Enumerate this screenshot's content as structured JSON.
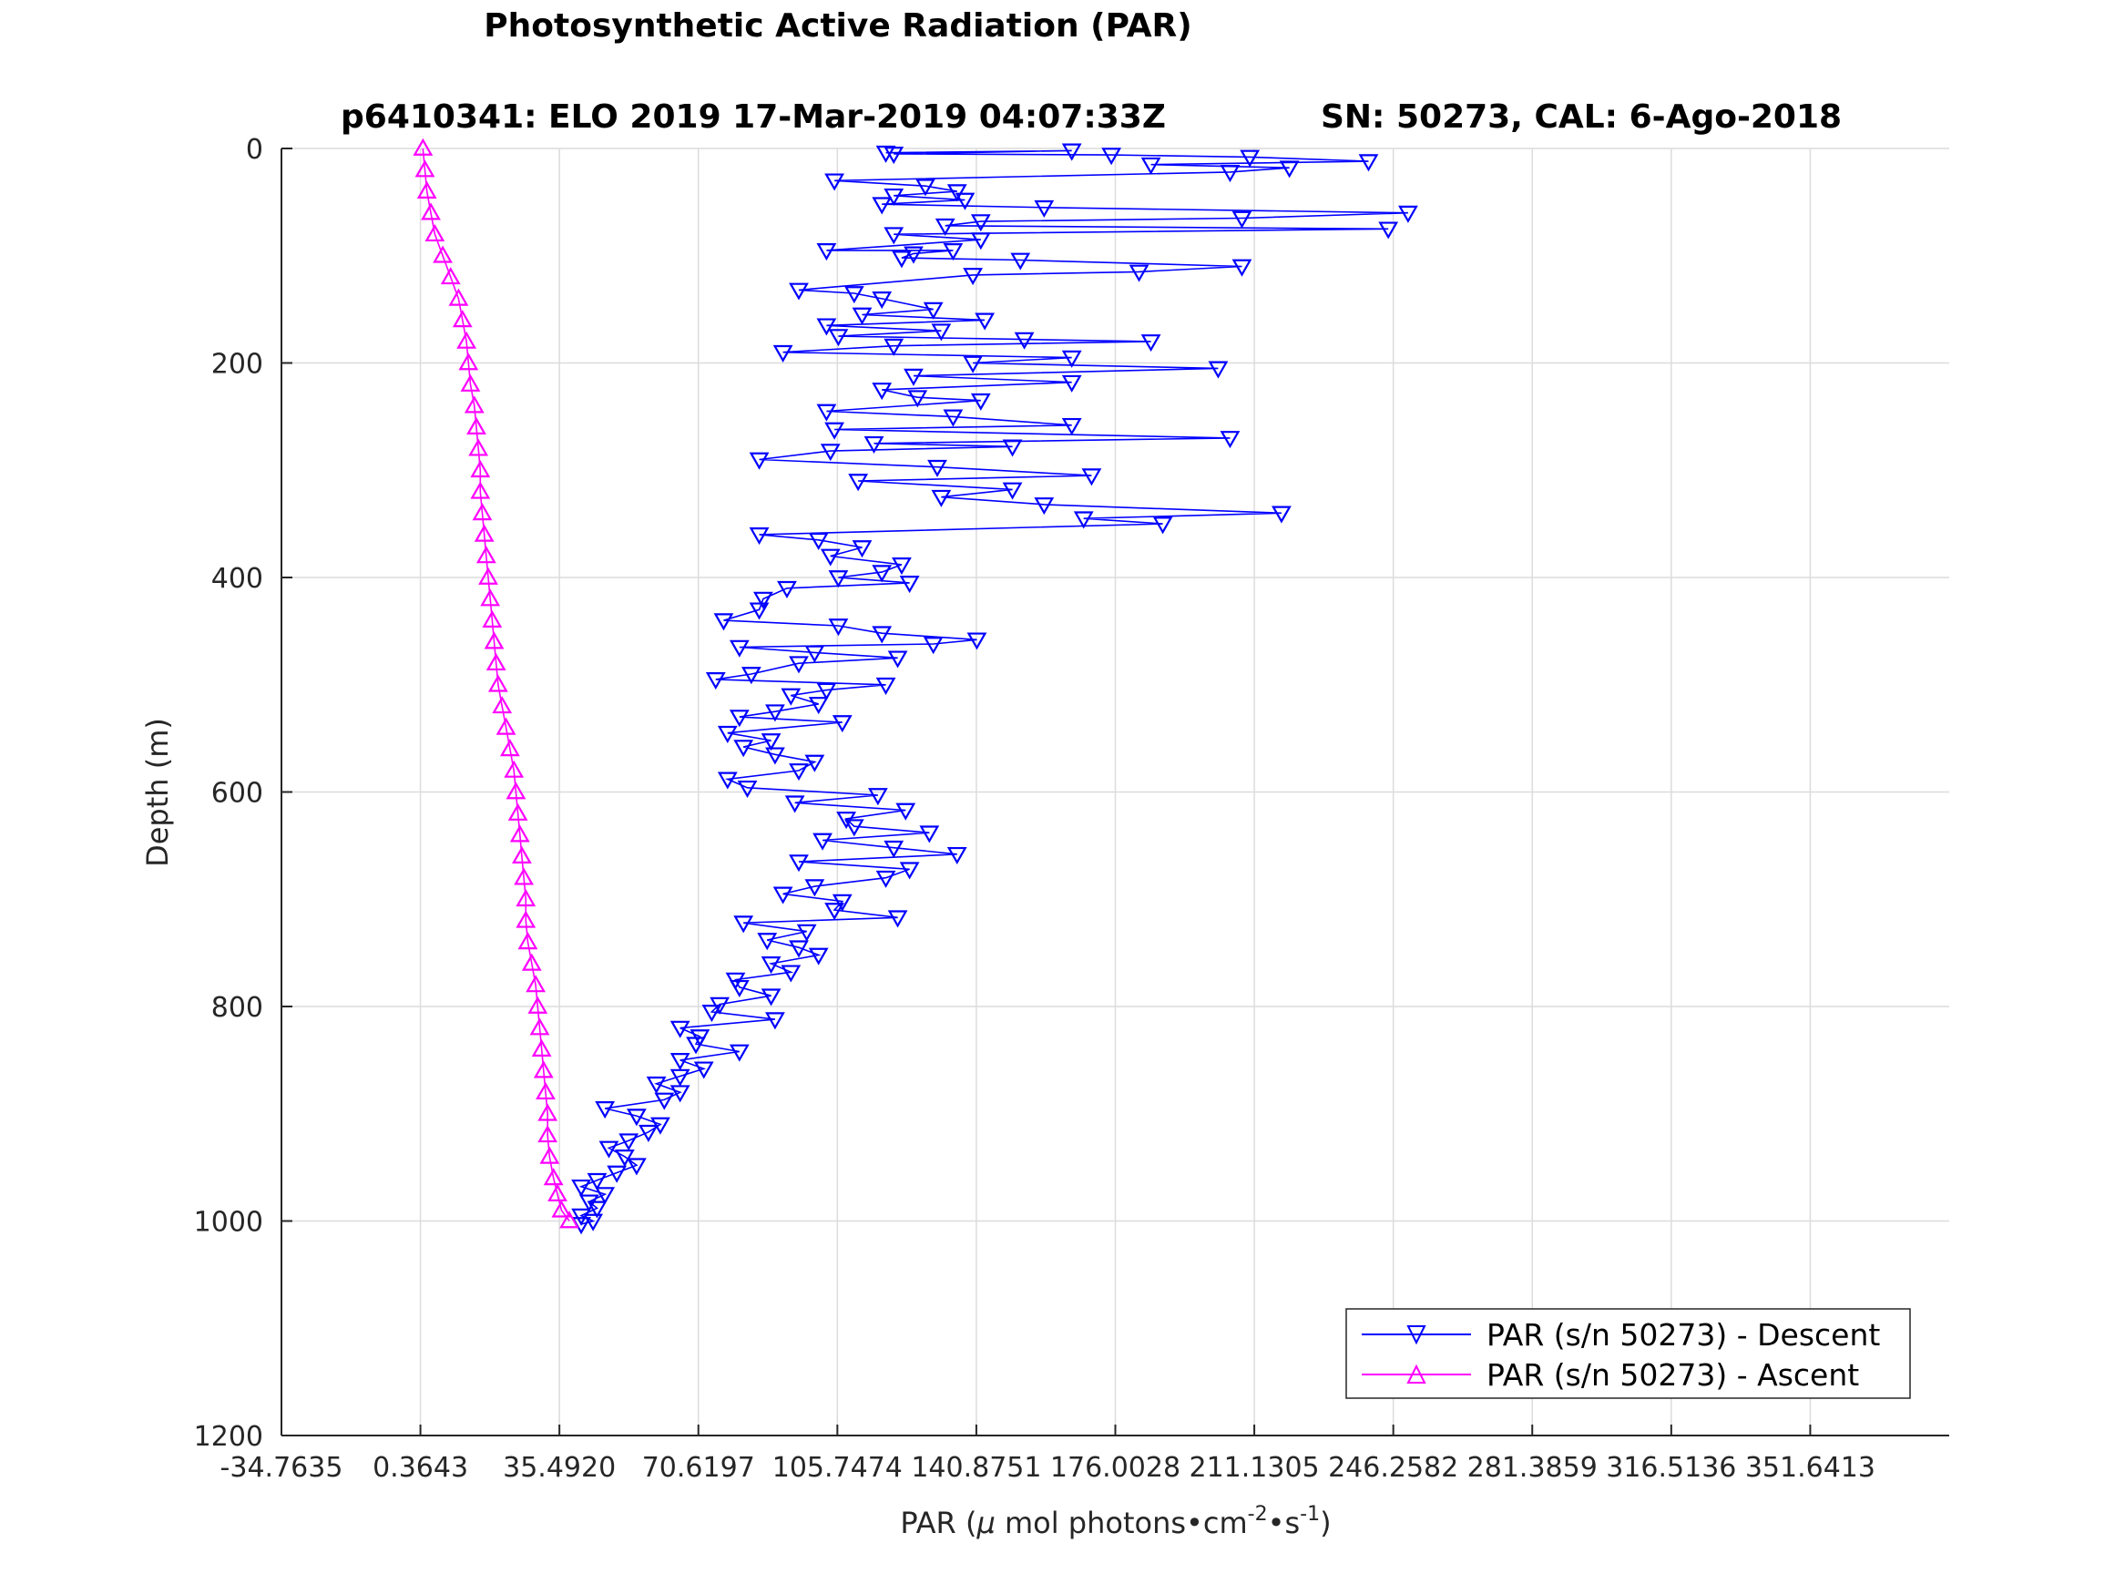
{
  "chart_data": {
    "type": "line",
    "title": "Photosynthetic Active Radiation (PAR)",
    "subtitle_left": "p6410341: ELO 2019 17-Mar-2019 04:07:33Z",
    "subtitle_right": "SN: 50273, CAL: 6-Ago-2018",
    "xlabel_prefix": "PAR (",
    "xlabel_mu": "μ",
    "xlabel_mid": " mol photons•cm",
    "xlabel_sup1": "-2",
    "xlabel_mid2": "•s",
    "xlabel_sup2": "-1",
    "xlabel_suffix": ")",
    "ylabel": "Depth (m)",
    "xlim": [
      -34.7635,
      386.769
    ],
    "ylim": [
      0,
      1200
    ],
    "y_reversed": true,
    "grid": true,
    "legend_position": "bottom-right",
    "xtick_labels": [
      "-34.7635",
      "0.3643",
      "35.4920",
      "70.6197",
      "105.7474",
      "140.8751",
      "176.0028",
      "211.1305",
      "246.2582",
      "281.3859",
      "316.5136",
      "351.6413"
    ],
    "xtick_values": [
      -34.7635,
      0.3643,
      35.492,
      70.6197,
      105.7474,
      140.8751,
      176.0028,
      211.1305,
      246.2582,
      281.3859,
      316.5136,
      351.6413
    ],
    "ytick_labels": [
      "0",
      "200",
      "400",
      "600",
      "800",
      "1000",
      "1200"
    ],
    "ytick_values": [
      0,
      200,
      400,
      600,
      800,
      1000,
      1200
    ],
    "series": [
      {
        "name": "PAR (s/n 50273) - Descent",
        "color": "#0000ff",
        "marker": "triangle-down",
        "points": [
          [
            118,
            4
          ],
          [
            165,
            2
          ],
          [
            120,
            5
          ],
          [
            175,
            6
          ],
          [
            210,
            8
          ],
          [
            240,
            12
          ],
          [
            185,
            15
          ],
          [
            220,
            18
          ],
          [
            205,
            22
          ],
          [
            105,
            30
          ],
          [
            128,
            35
          ],
          [
            136,
            40
          ],
          [
            120,
            44
          ],
          [
            138,
            48
          ],
          [
            117,
            52
          ],
          [
            158,
            55
          ],
          [
            250,
            60
          ],
          [
            208,
            65
          ],
          [
            142,
            68
          ],
          [
            133,
            72
          ],
          [
            245,
            75
          ],
          [
            120,
            80
          ],
          [
            142,
            85
          ],
          [
            103,
            95
          ],
          [
            135,
            95
          ],
          [
            125,
            98
          ],
          [
            122,
            102
          ],
          [
            152,
            104
          ],
          [
            208,
            110
          ],
          [
            182,
            115
          ],
          [
            140,
            118
          ],
          [
            96,
            132
          ],
          [
            110,
            135
          ],
          [
            117,
            140
          ],
          [
            130,
            150
          ],
          [
            112,
            155
          ],
          [
            143,
            160
          ],
          [
            103,
            165
          ],
          [
            132,
            170
          ],
          [
            106,
            175
          ],
          [
            153,
            178
          ],
          [
            185,
            180
          ],
          [
            120,
            184
          ],
          [
            92,
            190
          ],
          [
            165,
            195
          ],
          [
            140,
            200
          ],
          [
            202,
            205
          ],
          [
            125,
            212
          ],
          [
            165,
            218
          ],
          [
            117,
            225
          ],
          [
            126,
            232
          ],
          [
            142,
            235
          ],
          [
            103,
            245
          ],
          [
            135,
            250
          ],
          [
            165,
            258
          ],
          [
            105,
            262
          ],
          [
            205,
            270
          ],
          [
            115,
            275
          ],
          [
            150,
            278
          ],
          [
            104,
            282
          ],
          [
            86,
            290
          ],
          [
            131,
            297
          ],
          [
            170,
            305
          ],
          [
            111,
            310
          ],
          [
            150,
            318
          ],
          [
            132,
            325
          ],
          [
            158,
            332
          ],
          [
            218,
            340
          ],
          [
            168,
            345
          ],
          [
            188,
            350
          ],
          [
            86,
            360
          ],
          [
            101,
            365
          ],
          [
            112,
            372
          ],
          [
            104,
            380
          ],
          [
            122,
            388
          ],
          [
            117,
            395
          ],
          [
            106,
            400
          ],
          [
            124,
            405
          ],
          [
            93,
            410
          ],
          [
            87,
            420
          ],
          [
            86,
            430
          ],
          [
            77,
            440
          ],
          [
            106,
            445
          ],
          [
            117,
            452
          ],
          [
            141,
            458
          ],
          [
            130,
            462
          ],
          [
            81,
            465
          ],
          [
            100,
            470
          ],
          [
            121,
            475
          ],
          [
            96,
            480
          ],
          [
            84,
            490
          ],
          [
            75,
            495
          ],
          [
            118,
            500
          ],
          [
            103,
            505
          ],
          [
            94,
            510
          ],
          [
            101,
            518
          ],
          [
            90,
            525
          ],
          [
            81,
            530
          ],
          [
            107,
            535
          ],
          [
            78,
            545
          ],
          [
            89,
            552
          ],
          [
            82,
            558
          ],
          [
            90,
            565
          ],
          [
            100,
            572
          ],
          [
            96,
            580
          ],
          [
            78,
            588
          ],
          [
            83,
            596
          ],
          [
            116,
            603
          ],
          [
            95,
            610
          ],
          [
            123,
            617
          ],
          [
            108,
            625
          ],
          [
            110,
            632
          ],
          [
            129,
            638
          ],
          [
            102,
            645
          ],
          [
            120,
            652
          ],
          [
            136,
            658
          ],
          [
            96,
            665
          ],
          [
            124,
            672
          ],
          [
            118,
            680
          ],
          [
            100,
            688
          ],
          [
            92,
            695
          ],
          [
            107,
            702
          ],
          [
            105,
            710
          ],
          [
            121,
            717
          ],
          [
            82,
            722
          ],
          [
            98,
            730
          ],
          [
            88,
            738
          ],
          [
            96,
            745
          ],
          [
            101,
            752
          ],
          [
            89,
            760
          ],
          [
            94,
            768
          ],
          [
            80,
            775
          ],
          [
            81,
            782
          ],
          [
            89,
            790
          ],
          [
            76,
            798
          ],
          [
            74,
            805
          ],
          [
            90,
            812
          ],
          [
            66,
            820
          ],
          [
            71,
            828
          ],
          [
            70,
            835
          ],
          [
            81,
            842
          ],
          [
            66,
            850
          ],
          [
            72,
            858
          ],
          [
            66,
            865
          ],
          [
            60,
            872
          ],
          [
            66,
            880
          ],
          [
            62,
            887
          ],
          [
            47,
            895
          ],
          [
            55,
            902
          ],
          [
            61,
            910
          ],
          [
            58,
            917
          ],
          [
            53,
            925
          ],
          [
            48,
            932
          ],
          [
            52,
            940
          ],
          [
            55,
            948
          ],
          [
            50,
            955
          ],
          [
            45,
            962
          ],
          [
            41,
            968
          ],
          [
            47,
            975
          ],
          [
            43,
            982
          ],
          [
            45,
            988
          ],
          [
            41,
            995
          ],
          [
            44,
            1000
          ],
          [
            41,
            1003
          ]
        ]
      },
      {
        "name": "PAR (s/n 50273) - Ascent",
        "color": "#ff00ff",
        "marker": "triangle-up",
        "points": [
          [
            1,
            0
          ],
          [
            1.5,
            20
          ],
          [
            2,
            40
          ],
          [
            3,
            60
          ],
          [
            4,
            80
          ],
          [
            6,
            100
          ],
          [
            8,
            120
          ],
          [
            10,
            140
          ],
          [
            11,
            160
          ],
          [
            12,
            180
          ],
          [
            12.5,
            200
          ],
          [
            13,
            220
          ],
          [
            14,
            240
          ],
          [
            14.5,
            260
          ],
          [
            15,
            280
          ],
          [
            15.5,
            300
          ],
          [
            15.5,
            320
          ],
          [
            16,
            340
          ],
          [
            16.5,
            360
          ],
          [
            17,
            380
          ],
          [
            17.5,
            400
          ],
          [
            18,
            420
          ],
          [
            18.5,
            440
          ],
          [
            19,
            460
          ],
          [
            19.5,
            480
          ],
          [
            20,
            500
          ],
          [
            21,
            520
          ],
          [
            22,
            540
          ],
          [
            23,
            560
          ],
          [
            24,
            580
          ],
          [
            24.5,
            600
          ],
          [
            25,
            620
          ],
          [
            25.5,
            640
          ],
          [
            26,
            660
          ],
          [
            26.5,
            680
          ],
          [
            27,
            700
          ],
          [
            27,
            720
          ],
          [
            27.5,
            740
          ],
          [
            28.5,
            760
          ],
          [
            29.5,
            780
          ],
          [
            30,
            800
          ],
          [
            30.5,
            820
          ],
          [
            31,
            840
          ],
          [
            31.5,
            860
          ],
          [
            32,
            880
          ],
          [
            32.5,
            900
          ],
          [
            32.5,
            920
          ],
          [
            33,
            940
          ],
          [
            34,
            960
          ],
          [
            35,
            975
          ],
          [
            36,
            990
          ],
          [
            38,
            1000
          ]
        ]
      }
    ]
  }
}
